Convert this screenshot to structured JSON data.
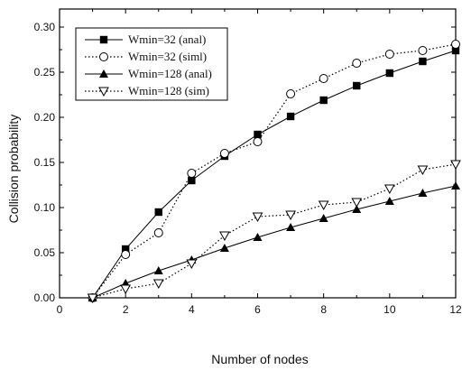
{
  "chart_data": {
    "type": "line",
    "title": "",
    "xlabel": "Number of nodes",
    "ylabel": "Collision probability",
    "xlim": [
      0,
      12
    ],
    "ylim": [
      0,
      0.32
    ],
    "xticks": [
      0,
      2,
      4,
      6,
      8,
      10,
      12
    ],
    "yticks": [
      0.0,
      0.05,
      0.1,
      0.15,
      0.2,
      0.25,
      0.3
    ],
    "ytick_labels": [
      "0.00",
      "0.05",
      "0.10",
      "0.15",
      "0.20",
      "0.25",
      "0.30"
    ],
    "xtick_labels": [
      "0",
      "2",
      "4",
      "6",
      "8",
      "10",
      "12"
    ],
    "grid": false,
    "legend_position": "top-left",
    "series": [
      {
        "name": "Wmin=32 (anal)",
        "marker": "filled-square",
        "line": "solid",
        "x": [
          1,
          2,
          3,
          4,
          5,
          6,
          7,
          8,
          9,
          10,
          11,
          12
        ],
        "y": [
          0.0,
          0.054,
          0.095,
          0.13,
          0.157,
          0.181,
          0.201,
          0.219,
          0.235,
          0.249,
          0.262,
          0.274
        ]
      },
      {
        "name": "Wmin=32 (siml)",
        "marker": "open-circle",
        "line": "dotted",
        "x": [
          1,
          2,
          3,
          4,
          5,
          6,
          7,
          8,
          9,
          10,
          11,
          12
        ],
        "y": [
          0.0,
          0.048,
          0.072,
          0.138,
          0.16,
          0.173,
          0.226,
          0.243,
          0.26,
          0.27,
          0.274,
          0.281
        ]
      },
      {
        "name": "Wmin=128 (anal)",
        "marker": "filled-triangle-up",
        "line": "solid",
        "x": [
          1,
          2,
          3,
          4,
          5,
          6,
          7,
          8,
          9,
          10,
          11,
          12
        ],
        "y": [
          0.0,
          0.016,
          0.03,
          0.042,
          0.055,
          0.067,
          0.078,
          0.088,
          0.098,
          0.107,
          0.116,
          0.124
        ]
      },
      {
        "name": "Wmin=128 (sim)",
        "marker": "open-triangle-down",
        "line": "dotted",
        "x": [
          1,
          2,
          3,
          4,
          5,
          6,
          7,
          8,
          9,
          10,
          11,
          12
        ],
        "y": [
          0.0,
          0.01,
          0.016,
          0.038,
          0.069,
          0.09,
          0.092,
          0.103,
          0.106,
          0.121,
          0.142,
          0.148
        ]
      }
    ]
  }
}
